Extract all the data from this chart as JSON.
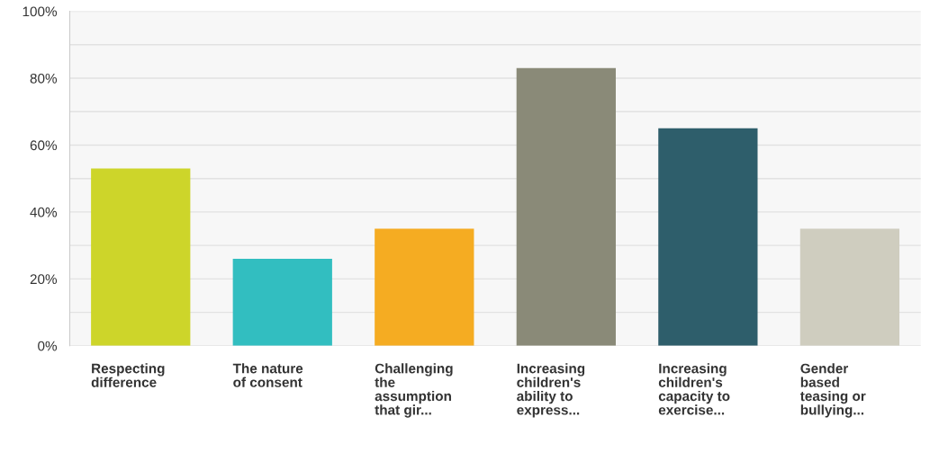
{
  "chart_data": {
    "type": "bar",
    "categories": [
      "Respecting\ndifference",
      "The nature\nof consent",
      "Challenging\nthe\nassumption\nthat gir...",
      "Increasing\nchildren's\nability to\nexpress...",
      "Increasing\nchildren's\ncapacity to\nexercise...",
      "Gender\nbased\nteasing or\nbullying..."
    ],
    "values": [
      53,
      26,
      35,
      83,
      65,
      35
    ],
    "colors": [
      "#cdd52a",
      "#32bec0",
      "#f5ac22",
      "#8a8a78",
      "#2e5e6b",
      "#cfcdbf"
    ],
    "ylim": [
      0,
      100
    ],
    "yticks": [
      {
        "value": 0,
        "label": "0%"
      },
      {
        "value": 10,
        "label": null
      },
      {
        "value": 20,
        "label": "20%"
      },
      {
        "value": 30,
        "label": null
      },
      {
        "value": 40,
        "label": "40%"
      },
      {
        "value": 50,
        "label": null
      },
      {
        "value": 60,
        "label": "60%"
      },
      {
        "value": 70,
        "label": null
      },
      {
        "value": 80,
        "label": "80%"
      },
      {
        "value": 90,
        "label": null
      },
      {
        "value": 100,
        "label": "100%"
      }
    ],
    "grid": "y"
  }
}
